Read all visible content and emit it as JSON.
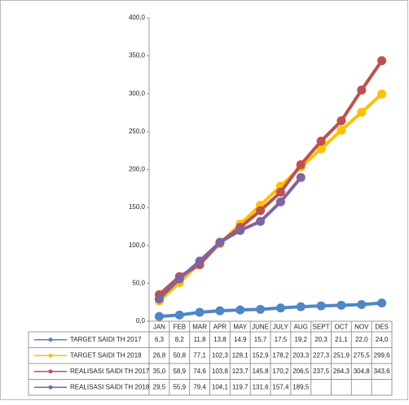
{
  "chart_data": {
    "type": "line",
    "categories": [
      "JAN",
      "FEB",
      "MAR",
      "APR",
      "MAY",
      "JUNE",
      "JULY",
      "AUG",
      "SEPT",
      "OCT",
      "NOV",
      "DES"
    ],
    "ylim": [
      0,
      400
    ],
    "yticks": [
      {
        "value": 0,
        "label": "0,0"
      },
      {
        "value": 50,
        "label": "50,0"
      },
      {
        "value": 100,
        "label": "100,0"
      },
      {
        "value": 150,
        "label": "150,0"
      },
      {
        "value": 200,
        "label": "200,0"
      },
      {
        "value": 250,
        "label": "250,0"
      },
      {
        "value": 300,
        "label": "300,0"
      },
      {
        "value": 350,
        "label": "350,0"
      },
      {
        "value": 400,
        "label": "400,0"
      }
    ],
    "series": [
      {
        "name": "TARGET SAIDI TH 2017",
        "color": "#4f86c6",
        "values": [
          6.3,
          8.2,
          11.8,
          13.8,
          14.9,
          15.7,
          17.5,
          19.2,
          20.3,
          21.1,
          22.0,
          24.0
        ],
        "value_labels": [
          "6,3",
          "8,2",
          "11,8",
          "13,8",
          "14,9",
          "15,7",
          "17,5",
          "19,2",
          "20,3",
          "21,1",
          "22,0",
          "24,0"
        ]
      },
      {
        "name": "TARGET SAIDI TH 2018",
        "color": "#ffc000",
        "values": [
          26.8,
          50.8,
          77.1,
          102.3,
          128.1,
          152.9,
          178.2,
          203.3,
          227.3,
          251.9,
          275.5,
          299.6
        ],
        "value_labels": [
          "26,8",
          "50,8",
          "77,1",
          "102,3",
          "128,1",
          "152,9",
          "178,2",
          "203,3",
          "227,3",
          "251,9",
          "275,5",
          "299,6"
        ]
      },
      {
        "name": "REALISASI SAIDI TH 2017",
        "color": "#c0504d",
        "values": [
          35.0,
          58.9,
          74.6,
          103.8,
          123.7,
          145.8,
          170.2,
          206.5,
          237.5,
          264.3,
          304.8,
          343.6
        ],
        "value_labels": [
          "35,0",
          "58,9",
          "74,6",
          "103,8",
          "123,7",
          "145,8",
          "170,2",
          "206,5",
          "237,5",
          "264,3",
          "304,8",
          "343,6"
        ]
      },
      {
        "name": "REALISASI SAIDI TH 2018",
        "color": "#8064a2",
        "values": [
          29.5,
          55.9,
          79.4,
          104.1,
          119.7,
          131.6,
          157.4,
          189.5,
          null,
          null,
          null,
          null
        ],
        "value_labels": [
          "29,5",
          "55,9",
          "79,4",
          "104,1",
          "119,7",
          "131,6",
          "157,4",
          "189,5",
          null,
          null,
          null,
          null
        ]
      }
    ]
  }
}
